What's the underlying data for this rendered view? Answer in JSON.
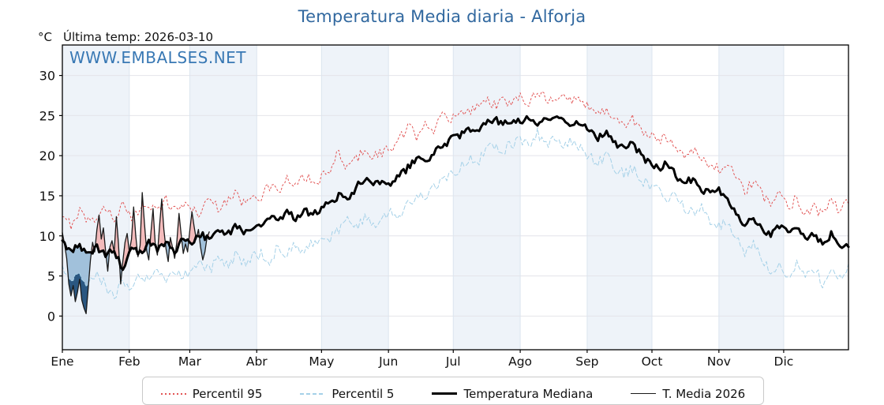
{
  "header": {
    "title": "Temperatura Media diaria - Alforja",
    "title_color": "#31689f",
    "units_label": "°C",
    "last_temp_label": "Última temp: 2026-03-10",
    "watermark": "WWW.EMBALSES.NET",
    "watermark_color": "#3878b4"
  },
  "chart_data": {
    "type": "line",
    "title": "Temperatura Media diaria - Alforja",
    "ylabel": "°C",
    "xlabel": "",
    "x_tick_labels": [
      "Ene",
      "Feb",
      "Mar",
      "Abr",
      "May",
      "Jun",
      "Jul",
      "Ago",
      "Sep",
      "Oct",
      "Nov",
      "Dic"
    ],
    "month_start_days": [
      0,
      31,
      59,
      90,
      120,
      151,
      181,
      212,
      243,
      273,
      304,
      334
    ],
    "days_in_year": 365,
    "yticks": [
      0,
      5,
      10,
      15,
      20,
      25,
      30
    ],
    "ylim": [
      -4.2,
      33.8
    ],
    "grid": true,
    "grid_color": "#e4e4ea",
    "vgrid_color": "#dce5ef",
    "band_color": "#eef3f9",
    "banded_months": [
      0,
      2,
      4,
      6,
      8,
      10
    ],
    "legend_position": "bottom",
    "fills": {
      "above_median_color": "#f2b0b0",
      "above_p95_color": "#d05858",
      "below_median_color": "#93b7d6",
      "below_p5_color": "#1f4e79"
    },
    "series": [
      {
        "name": "Percentil 95",
        "color": "#e25555",
        "width": 1,
        "dash": "2 3",
        "legend_sample": "dotted",
        "step_days": 4,
        "jitter": 0.7,
        "values": [
          12.0,
          11.5,
          13.2,
          11.8,
          12.5,
          13.5,
          12.2,
          13.8,
          12.0,
          13.5,
          14.2,
          13.0,
          14.5,
          13.2,
          14.0,
          13.3,
          12.8,
          14.8,
          13.5,
          14.5,
          15.2,
          14.0,
          15.5,
          14.8,
          16.2,
          15.5,
          17.0,
          16.0,
          17.5,
          16.5,
          17.2,
          18.0,
          20.5,
          18.5,
          19.5,
          21.0,
          19.8,
          20.5,
          20.8,
          22.0,
          23.5,
          22.5,
          24.5,
          23.0,
          25.0,
          24.3,
          26.0,
          25.2,
          26.5,
          27.2,
          26.3,
          27.0,
          26.2,
          27.5,
          26.8,
          28.2,
          27.3,
          26.5,
          27.6,
          26.8,
          27.2,
          26.0,
          25.2,
          25.8,
          24.5,
          23.8,
          24.6,
          23.2,
          22.5,
          21.8,
          22.4,
          21.0,
          20.2,
          21.0,
          19.5,
          18.8,
          18.3,
          19.2,
          17.0,
          15.5,
          16.8,
          15.0,
          14.2,
          15.5,
          13.5,
          14.8,
          12.8,
          13.8,
          12.5,
          14.5,
          13.0,
          14.2
        ]
      },
      {
        "name": "Percentil 5",
        "color": "#a5d1e8",
        "width": 1,
        "dash": "5 3",
        "legend_sample": "dashed",
        "step_days": 4,
        "jitter": 0.7,
        "values": [
          5.8,
          4.5,
          5.5,
          4.0,
          5.2,
          3.8,
          2.2,
          4.5,
          3.5,
          5.0,
          4.2,
          5.5,
          4.0,
          5.8,
          5.0,
          5.5,
          6.8,
          5.8,
          7.0,
          6.2,
          7.5,
          6.5,
          7.2,
          7.8,
          7.0,
          8.5,
          7.6,
          8.8,
          8.0,
          9.2,
          9.0,
          9.8,
          10.5,
          11.8,
          11.0,
          12.5,
          11.5,
          12.2,
          13.0,
          12.2,
          14.0,
          15.2,
          14.5,
          16.0,
          16.8,
          17.5,
          18.5,
          19.8,
          19.0,
          20.5,
          21.5,
          20.8,
          21.2,
          22.0,
          21.2,
          22.8,
          21.5,
          22.3,
          21.0,
          21.8,
          20.8,
          20.0,
          19.2,
          20.0,
          18.5,
          17.8,
          18.4,
          17.0,
          16.2,
          15.5,
          14.8,
          15.6,
          13.5,
          12.8,
          13.4,
          11.8,
          11.2,
          12.0,
          9.5,
          8.0,
          9.0,
          7.0,
          5.5,
          6.8,
          5.0,
          6.5,
          4.8,
          6.0,
          4.2,
          5.5,
          4.6,
          6.5
        ]
      },
      {
        "name": "Temperatura Mediana",
        "color": "#000000",
        "width": 3,
        "dash": "",
        "legend_sample": "thick",
        "step_days": 4,
        "jitter": 0.45,
        "values": [
          9.0,
          8.2,
          8.8,
          7.8,
          8.5,
          7.6,
          8.2,
          5.8,
          8.5,
          7.8,
          9.2,
          8.4,
          9.0,
          8.2,
          9.5,
          9.0,
          10.2,
          9.4,
          10.5,
          10.0,
          11.2,
          10.4,
          11.0,
          11.6,
          12.4,
          11.8,
          13.0,
          12.2,
          13.2,
          12.6,
          13.5,
          14.2,
          15.0,
          14.4,
          16.0,
          17.2,
          16.6,
          17.0,
          16.5,
          17.4,
          18.5,
          19.6,
          19.0,
          20.4,
          21.2,
          22.0,
          22.6,
          23.4,
          22.8,
          24.0,
          24.6,
          23.8,
          24.4,
          24.2,
          24.8,
          24.0,
          25.0,
          24.4,
          24.8,
          23.6,
          24.2,
          23.0,
          22.2,
          22.8,
          21.5,
          20.8,
          21.4,
          20.0,
          19.0,
          18.4,
          19.0,
          17.6,
          16.5,
          17.2,
          15.8,
          15.2,
          15.6,
          14.4,
          12.8,
          11.4,
          12.2,
          10.6,
          10.0,
          11.2,
          10.4,
          11.0,
          9.6,
          10.4,
          9.0,
          10.2,
          9.0,
          8.7
        ]
      },
      {
        "name": "T. Media 2026",
        "color": "#1a1a1a",
        "width": 1.3,
        "dash": "",
        "legend_sample": "thin",
        "step_days": 1,
        "jitter": 0,
        "values": [
          10.4,
          9.0,
          7.2,
          4.0,
          2.5,
          3.8,
          1.8,
          3.0,
          4.6,
          2.0,
          1.0,
          0.3,
          3.5,
          7.0,
          9.2,
          8.0,
          10.8,
          12.6,
          9.6,
          11.0,
          8.2,
          5.6,
          8.6,
          9.4,
          8.0,
          12.4,
          9.0,
          4.0,
          6.8,
          9.2,
          10.3,
          8.0,
          9.6,
          13.6,
          10.0,
          7.4,
          8.8,
          15.4,
          11.6,
          8.2,
          7.0,
          10.4,
          13.4,
          9.0,
          7.6,
          11.2,
          14.6,
          10.8,
          8.4,
          6.8,
          9.8,
          8.6,
          7.2,
          9.2,
          12.8,
          10.2,
          7.8,
          9.0,
          8.0,
          10.6,
          13.0,
          11.2,
          9.6,
          10.8,
          8.6,
          7.0,
          8.0,
          9.8,
          10.5
        ]
      }
    ]
  }
}
